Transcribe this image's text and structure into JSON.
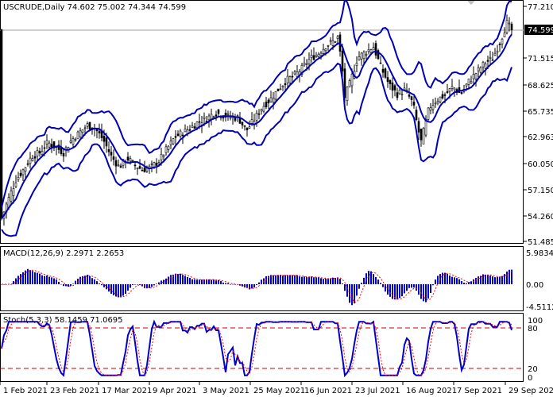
{
  "colors": {
    "background": "#ffffff",
    "frame": "#000000",
    "candle": "#000000",
    "bollinger": "#0000b4",
    "macd_hist": "#0000cc",
    "signal": "#ff0000",
    "stoch_main": "#0000cc",
    "stoch_signal": "#ff0000",
    "level_line": "#cc0000",
    "price_tag_bg": "#000000",
    "price_tag_fg": "#ffffff"
  },
  "main_panel": {
    "title": "USCRUDE,Daily",
    "ohlc": "74.602 75.002 74.344 74.599",
    "current_price": "74.599",
    "y_ticks": [
      "77.210",
      "74.599",
      "71.515",
      "68.625",
      "65.735",
      "62.963",
      "60.050",
      "57.150",
      "54.260",
      "51.485"
    ]
  },
  "macd_panel": {
    "label": "MACD(12,26,9) 2.2971 2.2653",
    "y_ticks": [
      "5.9834",
      "0.00",
      "-4.5112"
    ]
  },
  "stoch_panel": {
    "label": "Stoch(5,3,3) 58.1459 71.0695",
    "y_ticks": [
      "100",
      "80",
      "20",
      "0"
    ]
  },
  "x_ticks": [
    "1 Feb 2021",
    "23 Feb 2021",
    "17 Mar 2021",
    "9 Apr 2021",
    "3 May 2021",
    "25 May 2021",
    "16 Jun 2021",
    "23 Jul 2021",
    "16 Aug 2021",
    "7 Sep 2021",
    "29 Sep 2021"
  ],
  "chart_data": {
    "type": "candlestick",
    "symbol": "USCRUDE",
    "timeframe": "Daily",
    "indicators": [
      "Bollinger Bands",
      "MACD(12,26,9)",
      "Stoch(5,3,3)"
    ],
    "close_approx": [
      [
        0,
        53.5
      ],
      [
        8,
        55.5
      ],
      [
        20,
        58.2
      ],
      [
        30,
        59.4
      ],
      [
        40,
        60.8
      ],
      [
        50,
        61.2
      ],
      [
        60,
        62.3
      ],
      [
        70,
        61.8
      ],
      [
        80,
        61.2
      ],
      [
        90,
        62.6
      ],
      [
        100,
        63.4
      ],
      [
        110,
        64.2
      ],
      [
        120,
        63.8
      ],
      [
        130,
        62.6
      ],
      [
        140,
        60.8
      ],
      [
        150,
        59.6
      ],
      [
        160,
        60.6
      ],
      [
        170,
        59.8
      ],
      [
        180,
        59.3
      ],
      [
        190,
        59.6
      ],
      [
        200,
        60.3
      ],
      [
        210,
        61.6
      ],
      [
        220,
        62.9
      ],
      [
        230,
        63.4
      ],
      [
        240,
        63.9
      ],
      [
        250,
        64.6
      ],
      [
        260,
        64.9
      ],
      [
        270,
        65.6
      ],
      [
        280,
        65.3
      ],
      [
        290,
        65.1
      ],
      [
        300,
        65.0
      ],
      [
        310,
        63.6
      ],
      [
        320,
        64.8
      ],
      [
        330,
        66.2
      ],
      [
        340,
        67.0
      ],
      [
        350,
        68.1
      ],
      [
        360,
        69.1
      ],
      [
        370,
        69.6
      ],
      [
        380,
        70.4
      ],
      [
        390,
        71.5
      ],
      [
        400,
        72.0
      ],
      [
        410,
        72.9
      ],
      [
        420,
        73.4
      ],
      [
        425,
        73.8
      ],
      [
        430,
        71.0
      ],
      [
        434,
        67.3
      ],
      [
        440,
        68.7
      ],
      [
        450,
        71.6
      ],
      [
        460,
        72.2
      ],
      [
        470,
        72.8
      ],
      [
        480,
        70.4
      ],
      [
        490,
        68.6
      ],
      [
        500,
        67.6
      ],
      [
        510,
        68.1
      ],
      [
        520,
        66.5
      ],
      [
        526,
        63.8
      ],
      [
        530,
        62.4
      ],
      [
        540,
        66.1
      ],
      [
        550,
        67.0
      ],
      [
        560,
        67.5
      ],
      [
        570,
        68.4
      ],
      [
        580,
        67.6
      ],
      [
        590,
        69.0
      ],
      [
        600,
        70.0
      ],
      [
        610,
        71.0
      ],
      [
        620,
        71.5
      ],
      [
        630,
        73.5
      ],
      [
        638,
        75.4
      ],
      [
        644,
        74.6
      ]
    ]
  }
}
